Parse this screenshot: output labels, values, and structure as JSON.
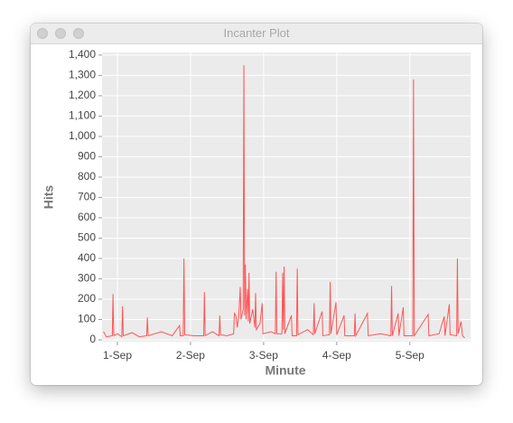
{
  "window": {
    "title": "Incanter Plot"
  },
  "chart_data": {
    "type": "line",
    "xlabel": "Minute",
    "ylabel": "Hits",
    "color": "#ff5555",
    "grid": true,
    "xlim": [
      0.79,
      5.83
    ],
    "ylim": [
      -9,
      1413
    ],
    "xticks": [
      {
        "value": 1,
        "label": "1-Sep"
      },
      {
        "value": 2,
        "label": "2-Sep"
      },
      {
        "value": 3,
        "label": "3-Sep"
      },
      {
        "value": 4,
        "label": "4-Sep"
      },
      {
        "value": 5,
        "label": "5-Sep"
      }
    ],
    "yticks": [
      0,
      100,
      200,
      300,
      400,
      500,
      600,
      700,
      800,
      900,
      {
        "value": 1000,
        "label": "1,000"
      },
      {
        "value": 1100,
        "label": "1,100"
      },
      {
        "value": 1200,
        "label": "1,200"
      },
      {
        "value": 1300,
        "label": "1,300"
      },
      {
        "value": 1400,
        "label": "1,400"
      }
    ],
    "x": [
      0.81,
      0.85,
      0.93,
      0.94,
      0.95,
      1.0,
      1.06,
      1.07,
      1.08,
      1.2,
      1.3,
      1.4,
      1.41,
      1.42,
      1.6,
      1.75,
      1.85,
      1.86,
      1.9,
      1.91,
      1.92,
      2.05,
      2.18,
      2.19,
      2.2,
      2.3,
      2.39,
      2.4,
      2.41,
      2.5,
      2.59,
      2.6,
      2.62,
      2.64,
      2.66,
      2.68,
      2.69,
      2.72,
      2.73,
      2.74,
      2.75,
      2.76,
      2.78,
      2.79,
      2.8,
      2.81,
      2.85,
      2.88,
      2.89,
      2.9,
      2.95,
      2.98,
      2.99,
      3.1,
      3.16,
      3.17,
      3.18,
      3.25,
      3.26,
      3.27,
      3.28,
      3.29,
      3.38,
      3.39,
      3.45,
      3.46,
      3.47,
      3.6,
      3.68,
      3.69,
      3.7,
      3.8,
      3.81,
      3.9,
      3.91,
      3.92,
      3.99,
      4.0,
      4.1,
      4.11,
      4.24,
      4.25,
      4.26,
      4.42,
      4.43,
      4.6,
      4.74,
      4.75,
      4.76,
      4.84,
      4.85,
      4.91,
      4.92,
      5.04,
      5.05,
      5.06,
      5.25,
      5.26,
      5.4,
      5.47,
      5.48,
      5.54,
      5.55,
      5.64,
      5.65,
      5.66,
      5.7,
      5.72,
      5.75
    ],
    "values": [
      40,
      15,
      20,
      225,
      20,
      30,
      15,
      165,
      20,
      35,
      15,
      20,
      110,
      20,
      40,
      20,
      70,
      20,
      20,
      400,
      25,
      20,
      20,
      235,
      20,
      40,
      20,
      120,
      25,
      20,
      30,
      130,
      120,
      60,
      120,
      260,
      100,
      150,
      1350,
      120,
      370,
      100,
      250,
      90,
      330,
      80,
      150,
      60,
      230,
      50,
      80,
      180,
      30,
      40,
      30,
      335,
      30,
      30,
      330,
      50,
      360,
      30,
      120,
      20,
      20,
      350,
      25,
      50,
      25,
      180,
      30,
      140,
      20,
      25,
      285,
      30,
      185,
      25,
      120,
      20,
      20,
      130,
      20,
      130,
      20,
      30,
      20,
      265,
      20,
      130,
      20,
      160,
      20,
      20,
      1280,
      20,
      125,
      20,
      30,
      115,
      20,
      175,
      25,
      20,
      400,
      30,
      90,
      20,
      10
    ]
  }
}
